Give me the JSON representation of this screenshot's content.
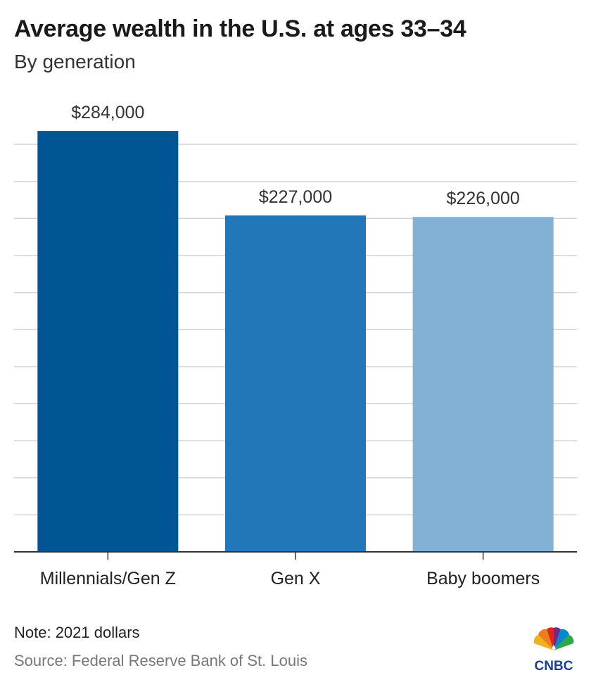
{
  "title": "Average wealth in the U.S. at ages 33–34",
  "subtitle": "By generation",
  "note": "Note: 2021 dollars",
  "source": "Source: Federal Reserve Bank of St. Louis",
  "brand": {
    "name": "CNBC",
    "icon": "peacock-icon",
    "text_color": "#1c3f94"
  },
  "chart_data": {
    "type": "bar",
    "title": "Average wealth in the U.S. at ages 33–34",
    "subtitle": "By generation",
    "xlabel": "",
    "ylabel": "",
    "categories": [
      "Millennials/Gen Z",
      "Gen X",
      "Baby boomers"
    ],
    "values": [
      284000,
      227000,
      226000
    ],
    "value_labels": [
      "$284,000",
      "$227,000",
      "$226,000"
    ],
    "colors": [
      "#005594",
      "#2177b8",
      "#82b1d5"
    ],
    "ylim": [
      0,
      285000
    ],
    "grid": true,
    "gridline_step": 25000,
    "y_tick_labels_shown": false,
    "legend": "none"
  }
}
